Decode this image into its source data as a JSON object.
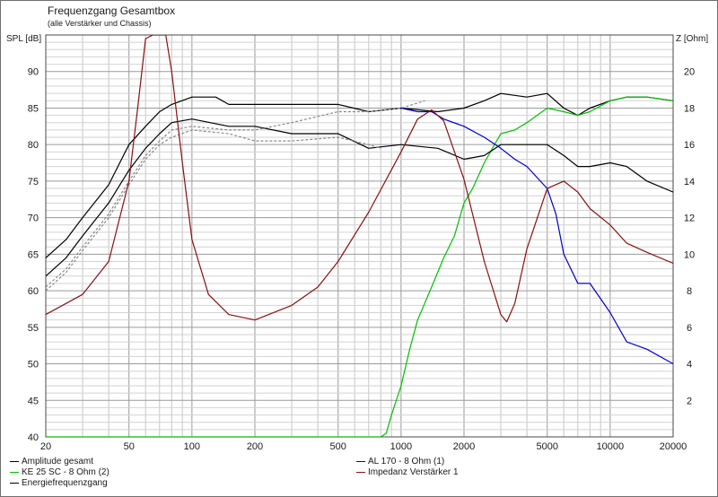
{
  "header": {
    "title": "Frequenzgang Gesamtbox",
    "subtitle": "(alle Verstärker und Chassis)",
    "left_unit": "SPL [dB]",
    "right_unit": "Z [Ohm]"
  },
  "legend": [
    {
      "label": "Amplitude gesamt",
      "color": "#000000"
    },
    {
      "label": "KE 25 SC - 8 Ohm   (2)",
      "color": "#00c000"
    },
    {
      "label": "Energiefrequenzgang",
      "color": "#000000"
    },
    {
      "label": "AL 170 - 8 Ohm (1)",
      "color": "#0000d0"
    },
    {
      "label": "Impedanz Verstärker 1",
      "color": "#8b1010"
    }
  ],
  "chart_data": {
    "type": "line",
    "title": "Frequenzgang Gesamtbox",
    "subtitle": "(alle Verstärker und Chassis)",
    "xlabel": "",
    "ylabel": "SPL [dB]",
    "y2label": "Z [Ohm]",
    "xscale": "log",
    "xlim": [
      20,
      20000
    ],
    "ylim": [
      40,
      95
    ],
    "y2lim": [
      0,
      22
    ],
    "grid": true,
    "legend_position": "bottom",
    "x_ticks": [
      20,
      50,
      100,
      200,
      500,
      1000,
      2000,
      5000,
      10000,
      20000
    ],
    "y_ticks": [
      40,
      45,
      50,
      55,
      60,
      65,
      70,
      75,
      80,
      85,
      90
    ],
    "y2_ticks": [
      2,
      4,
      6,
      8,
      10,
      12,
      14,
      16,
      18,
      20
    ],
    "series": [
      {
        "name": "Amplitude gesamt",
        "axis": "left",
        "color": "#000000",
        "x": [
          20,
          25,
          30,
          40,
          50,
          60,
          70,
          80,
          100,
          130,
          150,
          200,
          300,
          500,
          700,
          1000,
          1500,
          2000,
          2500,
          3000,
          4000,
          5000,
          6000,
          7000,
          8000,
          10000,
          12000,
          15000,
          20000
        ],
        "y": [
          64.5,
          67,
          70,
          74.5,
          80,
          82.5,
          84.5,
          85.5,
          86.5,
          86.5,
          85.5,
          85.5,
          85.5,
          85.5,
          84.5,
          85,
          84.5,
          85,
          86,
          87,
          86.5,
          87,
          85,
          84,
          85,
          86,
          86.5,
          86.5,
          86
        ]
      },
      {
        "name": "KE 25 SC - 8 Ohm   (2)",
        "axis": "left",
        "color": "#00c000",
        "x": [
          20,
          700,
          800,
          850,
          900,
          1000,
          1100,
          1200,
          1400,
          1600,
          1800,
          2000,
          2200,
          2500,
          2800,
          3000,
          3500,
          4000,
          5000,
          6000,
          7000,
          8000,
          10000,
          12000,
          15000,
          20000
        ],
        "y": [
          40,
          40,
          40,
          40.5,
          43,
          47,
          52,
          56,
          60.5,
          64.5,
          67.5,
          72,
          74,
          77.5,
          80,
          81.5,
          82,
          83,
          85,
          84.5,
          84,
          84.5,
          86,
          86.5,
          86.5,
          86
        ]
      },
      {
        "name": "Energiefrequenzgang",
        "axis": "left",
        "color": "#000000",
        "x": [
          20,
          25,
          30,
          40,
          50,
          60,
          70,
          80,
          100,
          150,
          200,
          300,
          500,
          700,
          1000,
          1500,
          2000,
          2500,
          3000,
          4000,
          5000,
          6000,
          7000,
          8000,
          10000,
          12000,
          15000,
          20000
        ],
        "y": [
          62,
          64.5,
          67.5,
          72,
          76.5,
          79.5,
          81.5,
          83,
          83.5,
          82.5,
          82.5,
          81.5,
          81.5,
          79.5,
          80,
          79.5,
          78,
          78.5,
          80,
          80,
          80,
          78.5,
          77,
          77,
          77.5,
          77,
          75,
          73.5
        ]
      },
      {
        "name": "",
        "axis": "left",
        "color": "#8a8a8a",
        "x": [
          20,
          25,
          30,
          40,
          50,
          60,
          70,
          80,
          100,
          150,
          200,
          300,
          500,
          700,
          1000,
          1300
        ],
        "y": [
          60.5,
          63,
          66,
          70.5,
          75,
          78.5,
          80.5,
          82,
          82.5,
          82,
          82,
          83,
          84.5,
          84.5,
          85,
          86
        ]
      },
      {
        "name": "",
        "axis": "left",
        "color": "#8a8a8a",
        "x": [
          20,
          25,
          30,
          40,
          50,
          60,
          70,
          80,
          100,
          150,
          200,
          300,
          500,
          700,
          800
        ],
        "y": [
          60,
          62.5,
          65.5,
          70,
          74.5,
          78,
          80,
          81,
          82,
          81.5,
          80.5,
          80.5,
          81,
          80,
          79.5
        ]
      },
      {
        "name": "AL 170 - 8 Ohm (1)",
        "axis": "left",
        "color": "#0000d0",
        "x": [
          1000,
          1200,
          1400,
          1600,
          2000,
          2500,
          3000,
          3500,
          4000,
          5000,
          5500,
          6000,
          7000,
          8000,
          10000,
          12000,
          15000,
          20000
        ],
        "y": [
          85,
          84.5,
          84.5,
          83.5,
          82.5,
          81,
          79.5,
          78,
          77,
          74,
          70.5,
          65,
          61,
          61,
          57,
          53,
          52,
          50
        ]
      },
      {
        "name": "Impedanz Verstärker 1",
        "axis": "right",
        "color": "#8b1010",
        "x": [
          20,
          30,
          40,
          50,
          55,
          60,
          65,
          70,
          75,
          80,
          90,
          100,
          120,
          150,
          200,
          300,
          400,
          500,
          700,
          1000,
          1200,
          1400,
          1600,
          2000,
          2500,
          3000,
          3200,
          3500,
          4000,
          5000,
          6000,
          7000,
          8000,
          10000,
          12000,
          15000,
          20000
        ],
        "y": [
          6.7,
          7.8,
          9.6,
          14,
          18,
          21.8,
          22,
          22,
          22,
          20,
          15,
          10.8,
          7.8,
          6.7,
          6.4,
          7.2,
          8.2,
          9.6,
          12.3,
          15.6,
          17.4,
          17.9,
          17.3,
          14.1,
          9.6,
          6.7,
          6.3,
          7.3,
          10.3,
          13.6,
          14,
          13.4,
          12.5,
          11.6,
          10.6,
          10.1,
          9.5
        ]
      }
    ]
  }
}
